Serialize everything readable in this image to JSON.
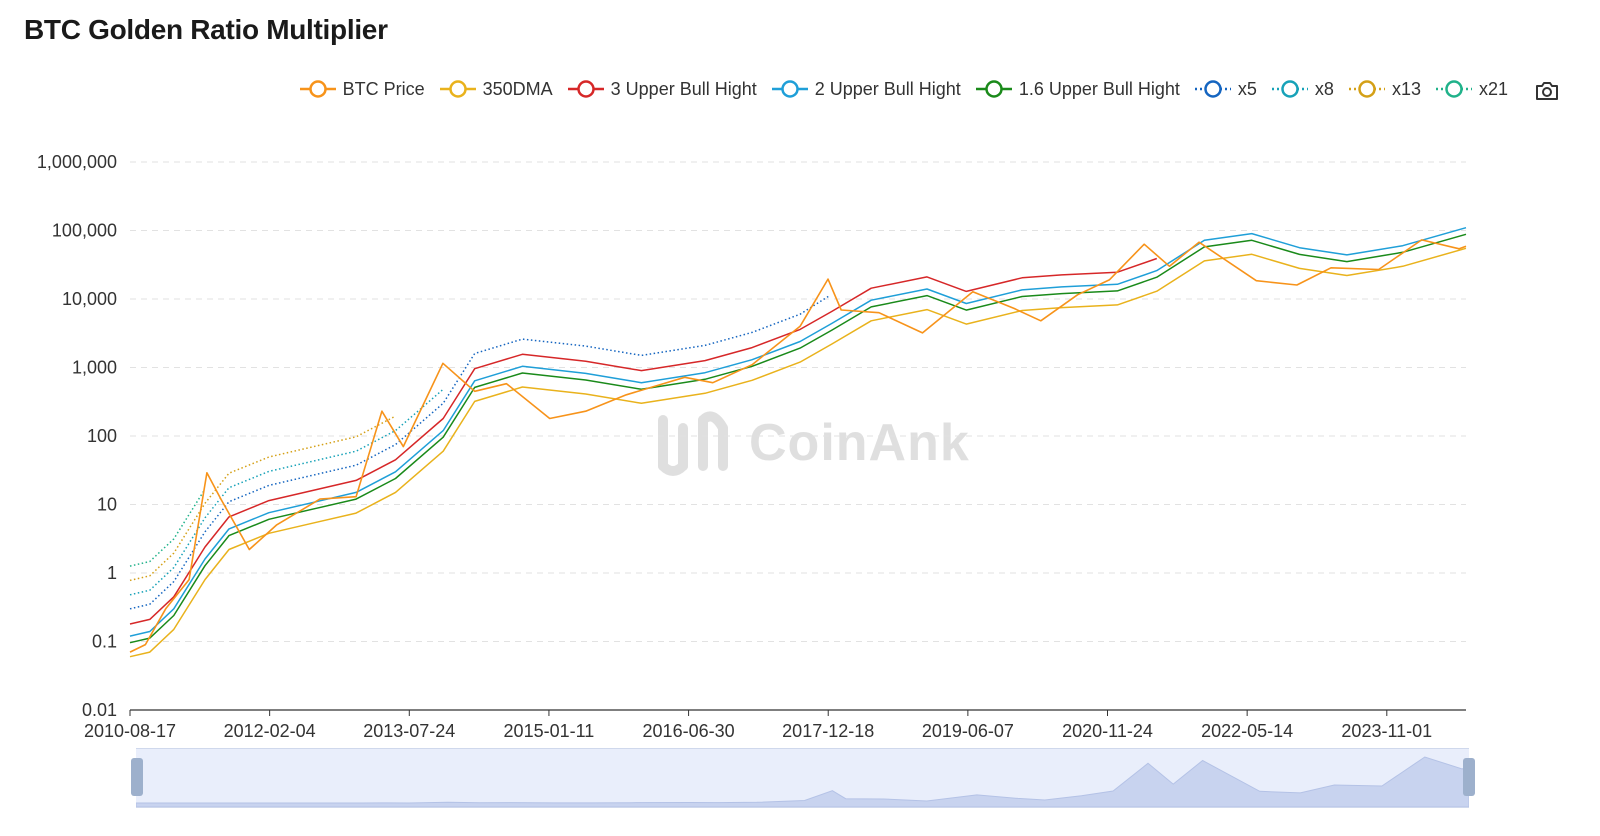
{
  "title": "BTC Golden Ratio Multiplier",
  "watermark": "CoinAnk",
  "legend": [
    {
      "label": "BTC Price",
      "color": "#f7931a",
      "style": "solid",
      "icon": "circle-line-icon"
    },
    {
      "label": "350DMA",
      "color": "#e9b21c",
      "style": "solid",
      "icon": "circle-line-icon"
    },
    {
      "label": "3 Upper Bull Hight",
      "color": "#d62728",
      "style": "solid",
      "icon": "circle-line-icon"
    },
    {
      "label": "2 Upper Bull Hight",
      "color": "#1f9fd8",
      "style": "solid",
      "icon": "circle-line-icon"
    },
    {
      "label": "1.6 Upper Bull Hight",
      "color": "#1a8a1a",
      "style": "solid",
      "icon": "circle-line-icon"
    },
    {
      "label": "x5",
      "color": "#1565c0",
      "style": "dotted",
      "icon": "circle-line-icon"
    },
    {
      "label": "x8",
      "color": "#17a2b8",
      "style": "dotted",
      "icon": "circle-line-icon"
    },
    {
      "label": "x13",
      "color": "#d4a017",
      "style": "dotted",
      "icon": "circle-line-icon"
    },
    {
      "label": "x21",
      "color": "#20b28a",
      "style": "dotted",
      "icon": "circle-line-icon"
    }
  ],
  "toolbar": {
    "save_icon": "camera-icon"
  },
  "chart_data": {
    "type": "line",
    "title": "BTC Golden Ratio Multiplier",
    "y_scale": "log",
    "ylim": [
      0.01,
      1000000
    ],
    "y_ticks": [
      "1,000,000",
      "100,000",
      "10,000",
      "1,000",
      "100",
      "10",
      "1",
      "0.1",
      "0.01"
    ],
    "x_ticks": [
      "2010-08-17",
      "2012-02-04",
      "2013-07-24",
      "2015-01-11",
      "2016-06-30",
      "2017-12-18",
      "2019-06-07",
      "2020-11-24",
      "2022-05-14",
      "2023-11-01"
    ],
    "xlim": [
      "2010-08-17",
      "2024-08-31"
    ],
    "grid": true,
    "legend_position": "top-right",
    "series": [
      {
        "name": "350DMA",
        "x": [
          "2010-08-17",
          "2010-11-01",
          "2011-02-01",
          "2011-06-01",
          "2011-09-01",
          "2012-02-01",
          "2012-08-01",
          "2013-01-01",
          "2013-06-01",
          "2013-12-01",
          "2014-04-01",
          "2014-10-01",
          "2015-06-01",
          "2016-01-01",
          "2016-09-01",
          "2017-03-01",
          "2017-09-01",
          "2018-01-01",
          "2018-06-01",
          "2019-01-01",
          "2019-06-01",
          "2020-01-01",
          "2020-06-01",
          "2021-01-01",
          "2021-06-01",
          "2021-12-01",
          "2022-06-01",
          "2022-12-01",
          "2023-06-01",
          "2024-01-01",
          "2024-08-31"
        ],
        "y": [
          0.06,
          0.07,
          0.15,
          0.8,
          2.2,
          3.8,
          5.5,
          7.5,
          15,
          60,
          320,
          520,
          410,
          300,
          420,
          650,
          1200,
          2200,
          4800,
          7000,
          4300,
          6800,
          7500,
          8200,
          13000,
          36000,
          45000,
          28000,
          22000,
          30000,
          55000
        ]
      },
      {
        "name": "BTC Price",
        "x": [
          "2010-08-17",
          "2010-10-15",
          "2011-01-01",
          "2011-04-01",
          "2011-06-08",
          "2011-08-01",
          "2011-11-18",
          "2012-03-01",
          "2012-08-15",
          "2013-01-01",
          "2013-04-10",
          "2013-07-01",
          "2013-11-30",
          "2014-04-01",
          "2014-08-01",
          "2015-01-14",
          "2015-06-01",
          "2015-11-04",
          "2016-06-15",
          "2016-10-01",
          "2017-03-01",
          "2017-09-01",
          "2017-12-17",
          "2018-02-06",
          "2018-07-01",
          "2018-12-15",
          "2019-06-26",
          "2019-12-01",
          "2020-03-13",
          "2020-08-01",
          "2020-12-01",
          "2021-04-14",
          "2021-07-20",
          "2021-11-10",
          "2022-06-18",
          "2022-11-21",
          "2023-04-01",
          "2023-10-01",
          "2024-03-14",
          "2024-08-05",
          "2024-08-31"
        ],
        "y": [
          0.07,
          0.09,
          0.3,
          0.8,
          29,
          12,
          2.2,
          5,
          12,
          13,
          230,
          70,
          1150,
          450,
          580,
          180,
          230,
          400,
          720,
          600,
          1100,
          4000,
          19500,
          6900,
          6300,
          3200,
          12800,
          7300,
          4800,
          11500,
          19000,
          63000,
          30000,
          67500,
          18500,
          16000,
          28500,
          27000,
          73000,
          54000,
          59000
        ]
      },
      {
        "name": "3 Upper Bull Hight",
        "x": [
          "2010-08-17",
          "2010-11-01",
          "2011-02-01",
          "2011-06-01",
          "2011-09-01",
          "2012-02-01",
          "2012-08-01",
          "2013-01-01",
          "2013-06-01",
          "2013-12-01",
          "2014-04-01",
          "2014-10-01",
          "2015-06-01",
          "2016-01-01",
          "2016-09-01",
          "2017-03-01",
          "2017-09-01",
          "2018-01-01",
          "2018-06-01",
          "2019-01-01",
          "2019-06-01",
          "2020-01-01",
          "2020-06-01",
          "2021-01-01",
          "2021-06-01"
        ],
        "y": [
          0.18,
          0.21,
          0.45,
          2.4,
          6.6,
          11.4,
          16.5,
          22.5,
          45,
          180,
          960,
          1560,
          1230,
          900,
          1260,
          1950,
          3600,
          6600,
          14400,
          21000,
          12900,
          20400,
          22500,
          24600,
          39000
        ]
      },
      {
        "name": "2 Upper Bull Hight",
        "x": [
          "2010-08-17",
          "2010-11-01",
          "2011-02-01",
          "2011-06-01",
          "2011-09-01",
          "2012-02-01",
          "2012-08-01",
          "2013-01-01",
          "2013-06-01",
          "2013-12-01",
          "2014-04-01",
          "2014-10-01",
          "2015-06-01",
          "2016-01-01",
          "2016-09-01",
          "2017-03-01",
          "2017-09-01",
          "2018-01-01",
          "2018-06-01",
          "2019-01-01",
          "2019-06-01",
          "2020-01-01",
          "2020-06-01",
          "2021-01-01",
          "2021-06-01",
          "2021-12-01",
          "2022-06-01",
          "2022-12-01",
          "2023-06-01",
          "2024-01-01",
          "2024-08-31"
        ],
        "y": [
          0.12,
          0.14,
          0.3,
          1.6,
          4.4,
          7.6,
          11,
          15,
          30,
          120,
          640,
          1040,
          820,
          600,
          840,
          1300,
          2400,
          4400,
          9600,
          14000,
          8600,
          13600,
          15000,
          16400,
          26000,
          72000,
          90000,
          56000,
          44000,
          60000,
          110000
        ]
      },
      {
        "name": "1.6 Upper Bull Hight",
        "x": [
          "2010-08-17",
          "2010-11-01",
          "2011-02-01",
          "2011-06-01",
          "2011-09-01",
          "2012-02-01",
          "2012-08-01",
          "2013-01-01",
          "2013-06-01",
          "2013-12-01",
          "2014-04-01",
          "2014-10-01",
          "2015-06-01",
          "2016-01-01",
          "2016-09-01",
          "2017-03-01",
          "2017-09-01",
          "2018-01-01",
          "2018-06-01",
          "2019-01-01",
          "2019-06-01",
          "2020-01-01",
          "2020-06-01",
          "2021-01-01",
          "2021-06-01",
          "2021-12-01",
          "2022-06-01",
          "2022-12-01",
          "2023-06-01",
          "2024-01-01",
          "2024-08-31"
        ],
        "y": [
          0.096,
          0.112,
          0.24,
          1.28,
          3.52,
          6.08,
          8.8,
          12,
          24,
          96,
          512,
          832,
          656,
          480,
          672,
          1040,
          1920,
          3520,
          7680,
          11200,
          6880,
          10880,
          12000,
          13120,
          20800,
          57600,
          72000,
          44800,
          35200,
          48000,
          88000
        ]
      },
      {
        "name": "x5",
        "x": [
          "2010-08-17",
          "2010-11-01",
          "2011-02-01",
          "2011-06-01",
          "2011-09-01",
          "2012-02-01",
          "2012-08-01",
          "2013-01-01",
          "2013-06-01",
          "2013-12-01",
          "2014-04-01",
          "2014-10-01",
          "2015-06-01",
          "2016-01-01",
          "2016-09-01",
          "2017-03-01",
          "2017-09-01",
          "2017-12-20"
        ],
        "y": [
          0.3,
          0.35,
          0.75,
          4,
          11,
          19,
          27.5,
          37.5,
          75,
          300,
          1600,
          2600,
          2050,
          1500,
          2100,
          3250,
          6000,
          11000
        ]
      },
      {
        "name": "x8",
        "x": [
          "2010-08-17",
          "2010-11-01",
          "2011-02-01",
          "2011-06-01",
          "2011-09-01",
          "2012-02-01",
          "2012-08-01",
          "2013-01-01",
          "2013-06-01",
          "2013-12-01"
        ],
        "y": [
          0.48,
          0.56,
          1.2,
          6.4,
          17.6,
          30.4,
          44,
          60,
          120,
          480
        ]
      },
      {
        "name": "x13",
        "x": [
          "2010-08-17",
          "2010-11-01",
          "2011-02-01",
          "2011-06-01",
          "2011-09-01",
          "2012-02-01",
          "2012-08-01",
          "2013-01-01",
          "2013-06-01"
        ],
        "y": [
          0.78,
          0.91,
          1.95,
          10.4,
          28.6,
          49.4,
          71.5,
          97.5,
          195
        ]
      },
      {
        "name": "x21",
        "x": [
          "2010-08-17",
          "2010-11-01",
          "2011-02-01",
          "2011-06-01"
        ],
        "y": [
          1.26,
          1.47,
          3.15,
          16.8
        ]
      }
    ]
  }
}
